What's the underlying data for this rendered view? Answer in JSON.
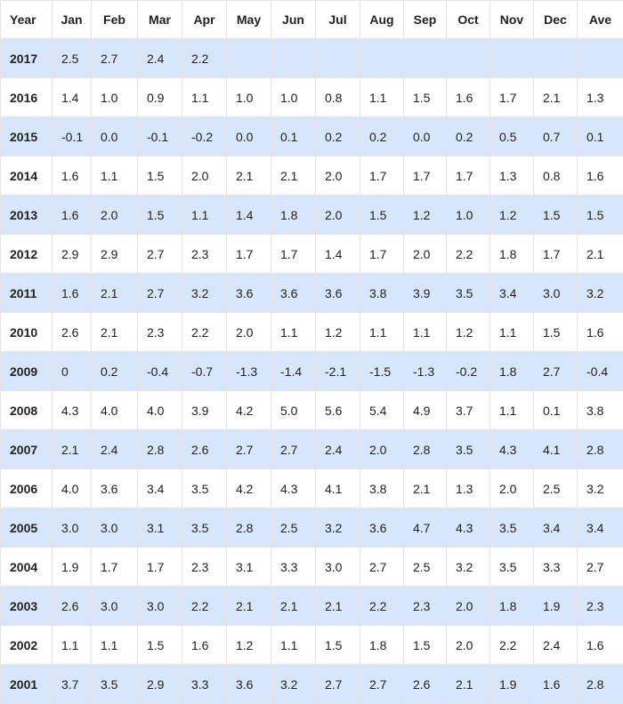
{
  "table": {
    "headers": [
      "Year",
      "Jan",
      "Feb",
      "Mar",
      "Apr",
      "May",
      "Jun",
      "Jul",
      "Aug",
      "Sep",
      "Oct",
      "Nov",
      "Dec",
      "Ave"
    ],
    "rows": [
      [
        "2017",
        "2.5",
        "2.7",
        "2.4",
        "2.2",
        "",
        "",
        "",
        "",
        "",
        "",
        "",
        "",
        ""
      ],
      [
        "2016",
        "1.4",
        "1.0",
        "0.9",
        "1.1",
        "1.0",
        "1.0",
        "0.8",
        "1.1",
        "1.5",
        "1.6",
        "1.7",
        "2.1",
        "1.3"
      ],
      [
        "2015",
        "-0.1",
        "0.0",
        "-0.1",
        "-0.2",
        "0.0",
        "0.1",
        "0.2",
        "0.2",
        "0.0",
        "0.2",
        "0.5",
        "0.7",
        "0.1"
      ],
      [
        "2014",
        "1.6",
        "1.1",
        "1.5",
        "2.0",
        "2.1",
        "2.1",
        "2.0",
        "1.7",
        "1.7",
        "1.7",
        "1.3",
        "0.8",
        "1.6"
      ],
      [
        "2013",
        "1.6",
        "2.0",
        "1.5",
        "1.1",
        "1.4",
        "1.8",
        "2.0",
        "1.5",
        "1.2",
        "1.0",
        "1.2",
        "1.5",
        "1.5"
      ],
      [
        "2012",
        "2.9",
        "2.9",
        "2.7",
        "2.3",
        "1.7",
        "1.7",
        "1.4",
        "1.7",
        "2.0",
        "2.2",
        "1.8",
        "1.7",
        "2.1"
      ],
      [
        "2011",
        "1.6",
        "2.1",
        "2.7",
        "3.2",
        "3.6",
        "3.6",
        "3.6",
        "3.8",
        "3.9",
        "3.5",
        "3.4",
        "3.0",
        "3.2"
      ],
      [
        "2010",
        "2.6",
        "2.1",
        "2.3",
        "2.2",
        "2.0",
        "1.1",
        "1.2",
        "1.1",
        "1.1",
        "1.2",
        "1.1",
        "1.5",
        "1.6"
      ],
      [
        "2009",
        "0",
        "0.2",
        "-0.4",
        "-0.7",
        "-1.3",
        "-1.4",
        "-2.1",
        "-1.5",
        "-1.3",
        "-0.2",
        "1.8",
        "2.7",
        "-0.4"
      ],
      [
        "2008",
        "4.3",
        "4.0",
        "4.0",
        "3.9",
        "4.2",
        "5.0",
        "5.6",
        "5.4",
        "4.9",
        "3.7",
        "1.1",
        "0.1",
        "3.8"
      ],
      [
        "2007",
        "2.1",
        "2.4",
        "2.8",
        "2.6",
        "2.7",
        "2.7",
        "2.4",
        "2.0",
        "2.8",
        "3.5",
        "4.3",
        "4.1",
        "2.8"
      ],
      [
        "2006",
        "4.0",
        "3.6",
        "3.4",
        "3.5",
        "4.2",
        "4.3",
        "4.1",
        "3.8",
        "2.1",
        "1.3",
        "2.0",
        "2.5",
        "3.2"
      ],
      [
        "2005",
        "3.0",
        "3.0",
        "3.1",
        "3.5",
        "2.8",
        "2.5",
        "3.2",
        "3.6",
        "4.7",
        "4.3",
        "3.5",
        "3.4",
        "3.4"
      ],
      [
        "2004",
        "1.9",
        "1.7",
        "1.7",
        "2.3",
        "3.1",
        "3.3",
        "3.0",
        "2.7",
        "2.5",
        "3.2",
        "3.5",
        "3.3",
        "2.7"
      ],
      [
        "2003",
        "2.6",
        "3.0",
        "3.0",
        "2.2",
        "2.1",
        "2.1",
        "2.1",
        "2.2",
        "2.3",
        "2.0",
        "1.8",
        "1.9",
        "2.3"
      ],
      [
        "2002",
        "1.1",
        "1.1",
        "1.5",
        "1.6",
        "1.2",
        "1.1",
        "1.5",
        "1.8",
        "1.5",
        "2.0",
        "2.2",
        "2.4",
        "1.6"
      ],
      [
        "2001",
        "3.7",
        "3.5",
        "2.9",
        "3.3",
        "3.6",
        "3.2",
        "2.7",
        "2.7",
        "2.6",
        "2.1",
        "1.9",
        "1.6",
        "2.8"
      ]
    ]
  },
  "colors": {
    "stripe": "#d7e6fa",
    "border": "#e3e3e3",
    "text": "#222222"
  }
}
